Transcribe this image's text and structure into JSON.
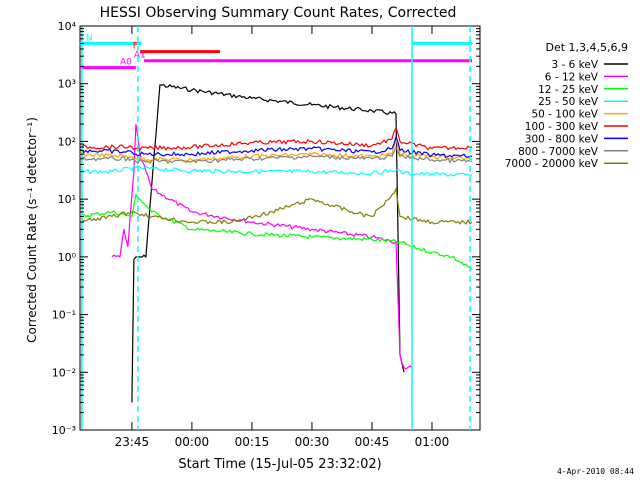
{
  "chart_data": {
    "type": "line",
    "title": "HESSI Observing Summary Count Rates, Corrected",
    "xlabel": "Start Time (15-Jul-05 23:32:02)",
    "ylabel": "Corrected Count Rate (s⁻¹ detector⁻¹)",
    "y_scale": "log",
    "ylim": [
      0.001,
      10000
    ],
    "xlim": [
      "23:32:02",
      "01:12:00"
    ],
    "x_ticks": [
      "23:45",
      "00:00",
      "00:15",
      "00:30",
      "00:45",
      "01:00"
    ],
    "y_ticks": [
      "10⁻³",
      "10⁻²",
      "10⁻¹",
      "10⁰",
      "10¹",
      "10²",
      "10³",
      "10⁴"
    ],
    "grid": false,
    "legend_position": "right",
    "legend_title": "Det 1,3,4,5,6,9",
    "series": [
      {
        "name": "3 - 6 keV",
        "color": "#000000",
        "x": [
          "23:45:00",
          "23:45:30",
          "23:46:00",
          "23:47:00",
          "23:48:30",
          "23:52:00",
          "00:00",
          "00:15",
          "00:30",
          "00:45",
          "00:51",
          "00:52",
          "00:53"
        ],
        "values": [
          0.003,
          0.9,
          1.0,
          1.0,
          1.0,
          950,
          780,
          560,
          430,
          340,
          300,
          0.02,
          0.01
        ]
      },
      {
        "name": "6 - 12 keV",
        "color": "#ff00ff",
        "x": [
          "23:40",
          "23:42",
          "23:43",
          "23:44",
          "23:45:30",
          "23:46",
          "23:47",
          "23:50",
          "00:00",
          "00:15",
          "00:30",
          "00:45",
          "00:51",
          "00:52",
          "00:53",
          "00:55"
        ],
        "values": [
          1.0,
          1.0,
          3.0,
          1.5,
          30,
          200,
          60,
          15,
          6,
          4,
          3,
          2.2,
          1.8,
          0.02,
          0.012,
          0.012
        ]
      },
      {
        "name": "12 - 25 keV",
        "color": "#00ff00",
        "x": [
          "23:32",
          "23:40",
          "23:45",
          "23:46",
          "23:47",
          "23:50",
          "00:00",
          "00:15",
          "00:30",
          "00:45",
          "00:52",
          "00:55",
          "01:00",
          "01:05",
          "01:10"
        ],
        "values": [
          5,
          6,
          5,
          12,
          10,
          6,
          3,
          2.5,
          2.2,
          2.0,
          1.8,
          1.5,
          1.2,
          1.0,
          0.6
        ]
      },
      {
        "name": "25 - 50 keV",
        "color": "#00ffff",
        "x": [
          "23:32",
          "23:40",
          "23:46",
          "00:00",
          "00:15",
          "00:30",
          "00:45",
          "00:51",
          "00:53",
          "01:00",
          "01:10"
        ],
        "values": [
          30,
          30,
          35,
          31,
          30,
          30,
          28,
          32,
          28,
          27,
          26
        ]
      },
      {
        "name": "50 - 100 keV",
        "color": "#ffa500",
        "x": [
          "23:32",
          "23:45",
          "23:46",
          "00:00",
          "00:15",
          "00:30",
          "00:45",
          "00:50",
          "00:51",
          "00:52",
          "01:00",
          "01:10"
        ],
        "values": [
          60,
          55,
          50,
          48,
          55,
          60,
          55,
          60,
          110,
          60,
          55,
          50
        ]
      },
      {
        "name": "100 - 300 keV",
        "color": "#ff0000",
        "x": [
          "23:32",
          "23:45",
          "23:46",
          "00:00",
          "00:15",
          "00:30",
          "00:45",
          "00:50",
          "00:51",
          "00:52",
          "01:00",
          "01:10"
        ],
        "values": [
          80,
          80,
          75,
          80,
          95,
          100,
          85,
          110,
          170,
          100,
          75,
          80
        ]
      },
      {
        "name": "300 - 800 keV",
        "color": "#0000ff",
        "x": [
          "23:32",
          "23:45",
          "23:46",
          "00:00",
          "00:15",
          "00:30",
          "00:45",
          "00:50",
          "00:51",
          "00:52",
          "01:00",
          "01:10"
        ],
        "values": [
          70,
          65,
          60,
          60,
          70,
          75,
          65,
          75,
          120,
          70,
          58,
          55
        ]
      },
      {
        "name": "800 - 7000 keV",
        "color": "#808080",
        "x": [
          "23:32",
          "23:45",
          "23:46",
          "00:00",
          "00:15",
          "00:30",
          "00:45",
          "00:50",
          "00:51",
          "00:52",
          "01:00",
          "01:10"
        ],
        "values": [
          50,
          50,
          45,
          45,
          50,
          55,
          50,
          55,
          80,
          55,
          48,
          45
        ]
      },
      {
        "name": "7000 - 20000 keV",
        "color": "#808000",
        "x": [
          "23:32",
          "23:40",
          "23:45",
          "23:50",
          "00:00",
          "00:10",
          "00:20",
          "00:30",
          "00:40",
          "00:45",
          "00:50",
          "00:51",
          "00:52",
          "01:00",
          "01:10"
        ],
        "values": [
          4,
          5,
          6,
          5,
          4,
          4,
          6,
          10,
          6,
          5,
          12,
          15,
          5,
          4,
          4
        ]
      }
    ],
    "flag_bars": [
      {
        "label": "N",
        "color": "#00ffff",
        "segments": [
          [
            "23:32",
            "23:47:30"
          ],
          [
            "00:55",
            "01:10"
          ]
        ],
        "value": 5000
      },
      {
        "label": "F",
        "color": "#ff0000",
        "segments": [
          [
            "23:47",
            "00:07"
          ]
        ],
        "value": 3600
      },
      {
        "label": "A0",
        "color": "#ff00ff",
        "segments": [
          [
            "23:32",
            "23:46"
          ]
        ],
        "value": 1900
      },
      {
        "label": "A1",
        "color": "#ff00ff",
        "segments": [
          [
            "23:48",
            "01:10"
          ]
        ],
        "value": 2500
      }
    ],
    "vertical_lines": {
      "color": "#00ffff",
      "solid": [
        "23:32:30",
        "00:55:00"
      ],
      "dashed": [
        "23:46:30",
        "01:09:30"
      ]
    }
  },
  "footer": {
    "timestamp": "4-Apr-2010 08:44"
  }
}
